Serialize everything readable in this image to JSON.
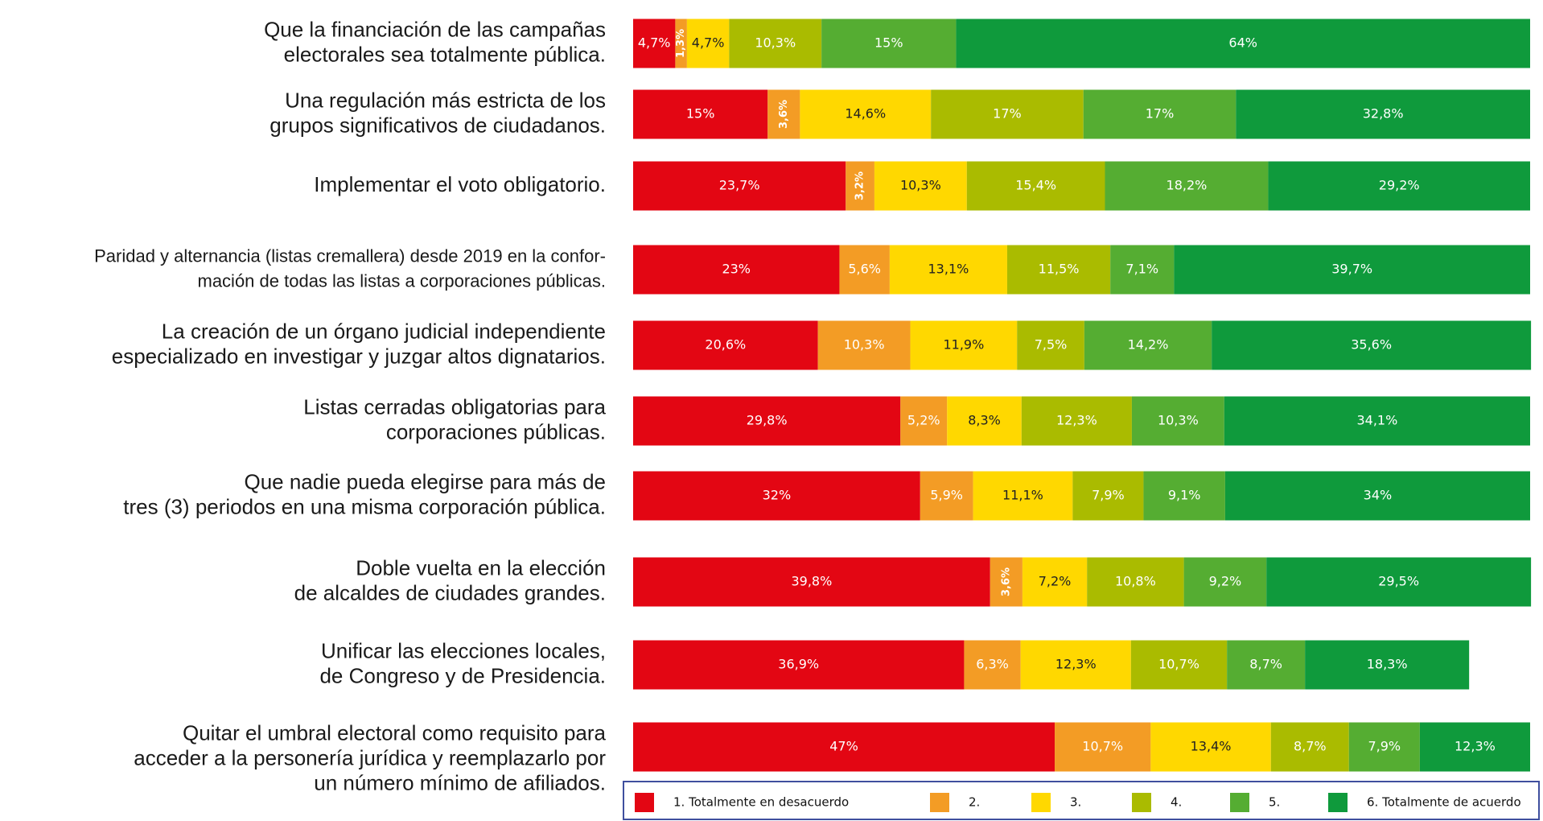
{
  "chart_data": {
    "type": "stacked-bar-horizontal",
    "categories": [
      [
        "Que la financiación de las campañas",
        "electorales  sea totalmente pública."
      ],
      [
        "Una regulación más estricta de los",
        "grupos significativos de ciudadanos."
      ],
      [
        "Implementar el voto obligatorio."
      ],
      [
        "Paridad y alternancia (listas cremallera) desde 2019 en la confor-",
        "mación de todas las listas a corporaciones públicas."
      ],
      [
        "La creación de un órgano judicial independiente",
        "especializado en investigar y juzgar altos dignatarios."
      ],
      [
        "Listas cerradas obligatorias para",
        "corporaciones públicas."
      ],
      [
        "Que nadie pueda elegirse para más de",
        "tres (3) periodos en una misma corporación pública."
      ],
      [
        "Doble vuelta en la elección",
        "de alcaldes de ciudades grandes."
      ],
      [
        "Unificar las elecciones locales,",
        "de Congreso y de Presidencia."
      ],
      [
        "Quitar el umbral electoral como requisito para",
        "acceder a la personería jurídica y reemplazarlo por",
        "un número mínimo de afiliados."
      ]
    ],
    "xlim": [
      0,
      100
    ],
    "series": [
      {
        "name": "1. Totalmente en desacuerdo",
        "color": "#e30613",
        "values": [
          4.7,
          15,
          23.7,
          23,
          20.6,
          29.8,
          32,
          39.8,
          36.9,
          47
        ],
        "value_labels": [
          "4,7%",
          "15%",
          "23,7%",
          "23%",
          "20,6%",
          "29,8%",
          "32%",
          "39,8%",
          "36,9%",
          "47%"
        ]
      },
      {
        "name": "2.",
        "color": "#f39c25",
        "values": [
          1.3,
          3.6,
          3.2,
          5.6,
          10.3,
          5.2,
          5.9,
          3.6,
          6.3,
          10.7
        ],
        "value_labels": [
          "1,3%",
          "3,6%",
          "3,2%",
          "5,6%",
          "10,3%",
          "5,2%",
          "5,9%",
          "3,6%",
          "6,3%",
          "10,7%"
        ]
      },
      {
        "name": "3.",
        "color": "#ffd800",
        "values": [
          4.7,
          14.6,
          10.3,
          13.1,
          11.9,
          8.3,
          11.1,
          7.2,
          12.3,
          13.4
        ],
        "value_labels": [
          "4,7%",
          "14,6%",
          "10,3%",
          "13,1%",
          "11,9%",
          "8,3%",
          "11,1%",
          "7,2%",
          "12,3%",
          "13,4%"
        ]
      },
      {
        "name": "4.",
        "color": "#aabb00",
        "values": [
          10.3,
          17,
          15.4,
          11.5,
          7.5,
          12.3,
          7.9,
          10.8,
          10.7,
          8.7
        ],
        "value_labels": [
          "10,3%",
          "17%",
          "15,4%",
          "11,5%",
          "7,5%",
          "12,3%",
          "7,9%",
          "10,8%",
          "10,7%",
          "8,7%"
        ]
      },
      {
        "name": "5.",
        "color": "#55ad32",
        "values": [
          15,
          17,
          18.2,
          7.1,
          14.2,
          10.3,
          9.1,
          9.2,
          8.7,
          7.9
        ],
        "value_labels": [
          "15%",
          "17%",
          "18,2%",
          "7,1%",
          "14,2%",
          "10,3%",
          "9,1%",
          "9,2%",
          "8,7%",
          "7,9%"
        ]
      },
      {
        "name": "6. Totalmente de acuerdo",
        "color": "#0f9a3c",
        "values": [
          64,
          32.8,
          29.2,
          39.7,
          35.6,
          34.1,
          34,
          29.5,
          18.3,
          12.3
        ],
        "value_labels": [
          "64%",
          "32,8%",
          "29,2%",
          "39,7%",
          "35,6%",
          "34,1%",
          "34%",
          "29,5%",
          "18,3%",
          "12,3%"
        ]
      }
    ]
  }
}
